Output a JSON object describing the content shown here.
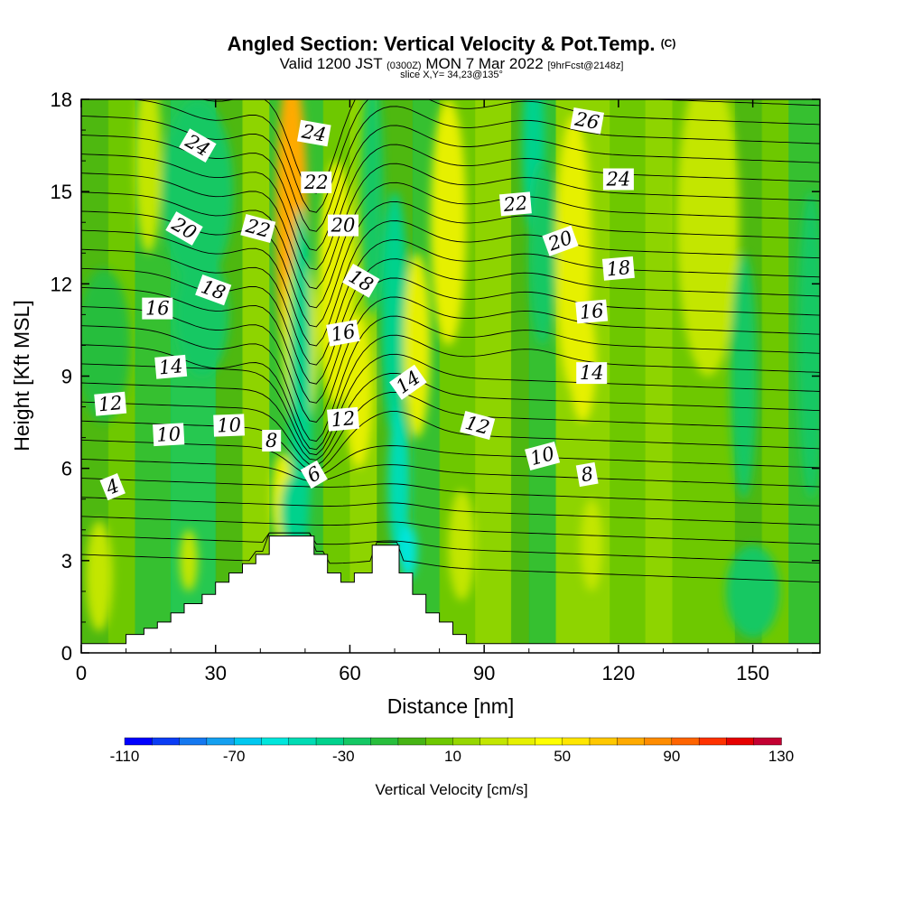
{
  "title": {
    "main": "Angled Section: Vertical Velocity & Pot.Temp.",
    "copyright": "(C)",
    "valid_prefix": "Valid 1200 JST",
    "utc": "(0300Z)",
    "valid_date": "MON 7 Mar 2022",
    "forecast": "[9hrFcst@2148z]",
    "slice": "slice X,Y= 34,23@135°"
  },
  "chart_data": {
    "type": "heatmap",
    "xlabel": "Distance [nm]",
    "ylabel": "Height [Kft MSL]",
    "xlim": [
      0,
      165
    ],
    "ylim": [
      0,
      18
    ],
    "x_ticks": [
      0,
      30,
      60,
      90,
      120,
      150
    ],
    "y_ticks": [
      0,
      3,
      6,
      9,
      12,
      15,
      18
    ],
    "color_variable": "Vertical Velocity [cm/s]",
    "colorbar": {
      "title": "Vertical Velocity [cm/s]",
      "min": -110,
      "max": 130,
      "step": 10,
      "tick_labels": [
        -110,
        -70,
        -30,
        10,
        50,
        90,
        130
      ],
      "colors": [
        "#0000ff",
        "#0a3cf5",
        "#1478f0",
        "#14a0f0",
        "#00c8f0",
        "#00e6dc",
        "#00dcb4",
        "#00d28c",
        "#14c864",
        "#28be3c",
        "#46b414",
        "#6ec800",
        "#96d700",
        "#c3e600",
        "#e6f000",
        "#ffff00",
        "#ffe600",
        "#ffc800",
        "#ffaa00",
        "#ff8c00",
        "#ff6400",
        "#ff3200",
        "#e60000",
        "#c30032",
        "#a00064",
        "#780096",
        "#5a00a0"
      ]
    },
    "terrain_profile": [
      [
        0,
        0.3
      ],
      [
        10,
        0.3
      ],
      [
        10,
        0.6
      ],
      [
        14,
        0.6
      ],
      [
        14,
        0.8
      ],
      [
        17,
        0.8
      ],
      [
        17,
        1.0
      ],
      [
        20,
        1.0
      ],
      [
        20,
        1.3
      ],
      [
        23,
        1.3
      ],
      [
        23,
        1.6
      ],
      [
        27,
        1.6
      ],
      [
        27,
        1.9
      ],
      [
        30,
        1.9
      ],
      [
        30,
        2.3
      ],
      [
        33,
        2.3
      ],
      [
        33,
        2.6
      ],
      [
        36,
        2.6
      ],
      [
        36,
        2.9
      ],
      [
        39,
        2.9
      ],
      [
        39,
        3.2
      ],
      [
        42,
        3.2
      ],
      [
        42,
        3.8
      ],
      [
        52,
        3.8
      ],
      [
        52,
        3.2
      ],
      [
        55,
        3.2
      ],
      [
        55,
        2.6
      ],
      [
        58,
        2.6
      ],
      [
        58,
        2.3
      ],
      [
        61,
        2.3
      ],
      [
        61,
        2.6
      ],
      [
        65,
        2.6
      ],
      [
        65,
        3.5
      ],
      [
        71,
        3.5
      ],
      [
        71,
        2.6
      ],
      [
        74,
        2.6
      ],
      [
        74,
        1.9
      ],
      [
        77,
        1.9
      ],
      [
        77,
        1.3
      ],
      [
        80,
        1.3
      ],
      [
        80,
        1.0
      ],
      [
        83,
        1.0
      ],
      [
        83,
        0.6
      ],
      [
        86,
        0.6
      ],
      [
        86,
        0.3
      ],
      [
        165,
        0.3
      ]
    ],
    "velocity_features": [
      {
        "type": "updraft",
        "x": 47,
        "y": 14,
        "dx": 3.5,
        "dy": 5,
        "value": 70
      },
      {
        "type": "updraft",
        "x": 49,
        "y": 10,
        "dx": 4,
        "dy": 3,
        "value": 35
      },
      {
        "type": "updraft",
        "x": 45,
        "y": 5,
        "dx": 2.5,
        "dy": 1.5,
        "value": 35
      },
      {
        "type": "downdraft",
        "x": 49,
        "y": 8.5,
        "dx": 2.5,
        "dy": 6,
        "value": -35
      },
      {
        "type": "downdraft",
        "x": 47,
        "y": 4.5,
        "dx": 2.5,
        "dy": 1.2,
        "value": -40
      },
      {
        "type": "updraft",
        "x": 57,
        "y": 12,
        "dx": 4,
        "dy": 4,
        "value": 35
      },
      {
        "type": "updraft",
        "x": 62,
        "y": 8.5,
        "dx": 3,
        "dy": 2.5,
        "value": 30
      },
      {
        "type": "downdraft",
        "x": 65,
        "y": 15,
        "dx": 2.5,
        "dy": 4,
        "value": -30
      },
      {
        "type": "downdraft",
        "x": 70,
        "y": 11,
        "dx": 3,
        "dy": 4,
        "value": -35
      },
      {
        "type": "downdraft",
        "x": 71,
        "y": 5.5,
        "dx": 2.5,
        "dy": 2.5,
        "value": -45
      },
      {
        "type": "downdraft",
        "x": 73,
        "y": 3.3,
        "dx": 2,
        "dy": 0.9,
        "value": -55
      },
      {
        "type": "updraft",
        "x": 75,
        "y": 10,
        "dx": 3,
        "dy": 3,
        "value": 30
      },
      {
        "type": "updraft",
        "x": 82,
        "y": 14,
        "dx": 4,
        "dy": 4,
        "value": 30
      },
      {
        "type": "updraft",
        "x": 85,
        "y": 3.5,
        "dx": 3,
        "dy": 1.8,
        "value": 25
      },
      {
        "type": "downdraft",
        "x": 101,
        "y": 16.5,
        "dx": 2.5,
        "dy": 3,
        "value": -40
      },
      {
        "type": "downdraft",
        "x": 103,
        "y": 13,
        "dx": 3,
        "dy": 3,
        "value": -25
      },
      {
        "type": "updraft",
        "x": 110,
        "y": 13,
        "dx": 4,
        "dy": 4.5,
        "value": 30
      },
      {
        "type": "updraft",
        "x": 112,
        "y": 9.5,
        "dx": 3,
        "dy": 2,
        "value": 30
      },
      {
        "type": "updraft",
        "x": 114,
        "y": 3.5,
        "dx": 2.5,
        "dy": 1.5,
        "value": 25
      },
      {
        "type": "downdraft",
        "x": 26,
        "y": 15,
        "dx": 8,
        "dy": 3,
        "value": -30
      },
      {
        "type": "downdraft",
        "x": 27,
        "y": 11,
        "dx": 6,
        "dy": 2,
        "value": -25
      },
      {
        "type": "updraft",
        "x": 15,
        "y": 16,
        "dx": 3,
        "dy": 3,
        "value": 25
      },
      {
        "type": "updraft",
        "x": 4,
        "y": 2.5,
        "dx": 3,
        "dy": 1.8,
        "value": 25
      },
      {
        "type": "updraft",
        "x": 24,
        "y": 3,
        "dx": 2,
        "dy": 1,
        "value": 25
      },
      {
        "type": "updraft",
        "x": 140,
        "y": 14,
        "dx": 7,
        "dy": 5,
        "value": 22
      },
      {
        "type": "downdraft",
        "x": 148,
        "y": 9,
        "dx": 3,
        "dy": 4,
        "value": -25
      },
      {
        "type": "downdraft",
        "x": 163,
        "y": 10,
        "dx": 3,
        "dy": 5,
        "value": -25
      },
      {
        "type": "downdraft",
        "x": 150,
        "y": 2,
        "dx": 6,
        "dy": 1.5,
        "value": -22
      },
      {
        "type": "downdraft",
        "x": 5,
        "y": 10,
        "dx": 6,
        "dy": 2.5,
        "value": -18
      }
    ],
    "theta_contours_K": [
      2,
      3,
      4,
      5,
      6,
      7,
      8,
      9,
      10,
      11,
      12,
      13,
      14,
      15,
      16,
      17,
      18,
      19,
      20,
      21,
      22,
      23,
      24,
      25,
      26,
      27
    ],
    "contour_labels": [
      {
        "text": "4",
        "x": 7,
        "y": 5.4,
        "angle": -22
      },
      {
        "text": "12",
        "x": 6.5,
        "y": 8.1,
        "angle": -5
      },
      {
        "text": "10",
        "x": 19.5,
        "y": 7.1,
        "angle": -3
      },
      {
        "text": "10",
        "x": 33,
        "y": 7.4,
        "angle": -2
      },
      {
        "text": "8",
        "x": 42.5,
        "y": 6.9,
        "angle": 0
      },
      {
        "text": "6",
        "x": 52,
        "y": 5.8,
        "angle": -30
      },
      {
        "text": "12",
        "x": 58.5,
        "y": 7.6,
        "angle": -5
      },
      {
        "text": "14",
        "x": 20,
        "y": 9.3,
        "angle": -5
      },
      {
        "text": "16",
        "x": 17,
        "y": 11.2,
        "angle": 0
      },
      {
        "text": "18",
        "x": 29.5,
        "y": 11.8,
        "angle": 20
      },
      {
        "text": "20",
        "x": 23,
        "y": 13.8,
        "angle": 30
      },
      {
        "text": "22",
        "x": 39.5,
        "y": 13.8,
        "angle": 15
      },
      {
        "text": "24",
        "x": 26,
        "y": 16.5,
        "angle": 30
      },
      {
        "text": "24",
        "x": 52,
        "y": 16.9,
        "angle": 10
      },
      {
        "text": "22",
        "x": 52.5,
        "y": 15.3,
        "angle": 0
      },
      {
        "text": "20",
        "x": 58.5,
        "y": 13.9,
        "angle": 0
      },
      {
        "text": "18",
        "x": 62.5,
        "y": 12.1,
        "angle": 30
      },
      {
        "text": "16",
        "x": 58.5,
        "y": 10.4,
        "angle": -10
      },
      {
        "text": "14",
        "x": 73,
        "y": 8.8,
        "angle": -35
      },
      {
        "text": "12",
        "x": 88.5,
        "y": 7.4,
        "angle": 15
      },
      {
        "text": "10",
        "x": 103,
        "y": 6.4,
        "angle": -15
      },
      {
        "text": "8",
        "x": 113,
        "y": 5.8,
        "angle": -10
      },
      {
        "text": "14",
        "x": 114,
        "y": 9.1,
        "angle": 0
      },
      {
        "text": "16",
        "x": 114,
        "y": 11.1,
        "angle": -5
      },
      {
        "text": "18",
        "x": 120,
        "y": 12.5,
        "angle": -5
      },
      {
        "text": "20",
        "x": 107,
        "y": 13.4,
        "angle": -20
      },
      {
        "text": "22",
        "x": 97,
        "y": 14.6,
        "angle": -5
      },
      {
        "text": "24",
        "x": 120,
        "y": 15.4,
        "angle": 0
      },
      {
        "text": "26",
        "x": 113,
        "y": 17.3,
        "angle": 10
      }
    ]
  }
}
